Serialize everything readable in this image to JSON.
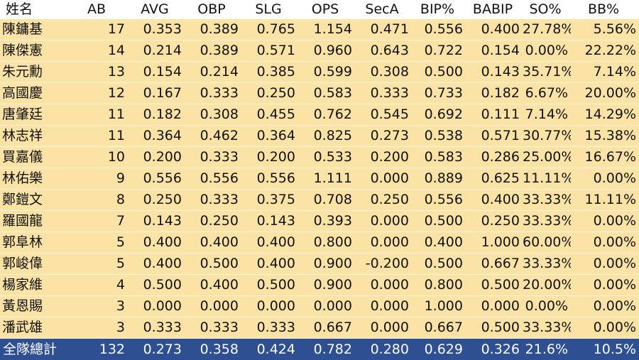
{
  "columns": [
    "姓名",
    "AB",
    "AVG",
    "OBP",
    "SLG",
    "OPS",
    "SecA",
    "BIP%",
    "BABIP",
    "SO%",
    "BB%"
  ],
  "rows": [
    [
      "陳鏞基",
      "17",
      "0.353",
      "0.389",
      "0.765",
      "1.154",
      "0.471",
      "0.556",
      "0.400",
      "27.78%",
      "5.56%"
    ],
    [
      "陳傑憲",
      "14",
      "0.214",
      "0.389",
      "0.571",
      "0.960",
      "0.643",
      "0.722",
      "0.154",
      "0.00%",
      "22.22%"
    ],
    [
      "朱元勳",
      "13",
      "0.154",
      "0.214",
      "0.385",
      "0.599",
      "0.308",
      "0.500",
      "0.143",
      "35.71%",
      "7.14%"
    ],
    [
      "高國慶",
      "12",
      "0.167",
      "0.333",
      "0.250",
      "0.583",
      "0.333",
      "0.733",
      "0.182",
      "6.67%",
      "20.00%"
    ],
    [
      "唐肇廷",
      "11",
      "0.182",
      "0.308",
      "0.455",
      "0.762",
      "0.545",
      "0.692",
      "0.111",
      "7.14%",
      "14.29%"
    ],
    [
      "林志祥",
      "11",
      "0.364",
      "0.462",
      "0.364",
      "0.825",
      "0.273",
      "0.538",
      "0.571",
      "30.77%",
      "15.38%"
    ],
    [
      "買嘉儀",
      "10",
      "0.200",
      "0.333",
      "0.200",
      "0.533",
      "0.200",
      "0.583",
      "0.286",
      "25.00%",
      "16.67%"
    ],
    [
      "林佑樂",
      "9",
      "0.556",
      "0.556",
      "0.556",
      "1.111",
      "0.000",
      "0.889",
      "0.625",
      "11.11%",
      "0.00%"
    ],
    [
      "鄭鎧文",
      "8",
      "0.250",
      "0.333",
      "0.375",
      "0.708",
      "0.250",
      "0.556",
      "0.400",
      "33.33%",
      "11.11%"
    ],
    [
      "羅國龍",
      "7",
      "0.143",
      "0.250",
      "0.143",
      "0.393",
      "0.000",
      "0.500",
      "0.250",
      "33.33%",
      "0.00%"
    ],
    [
      "郭阜林",
      "5",
      "0.400",
      "0.400",
      "0.400",
      "0.800",
      "0.000",
      "0.400",
      "1.000",
      "60.00%",
      "0.00%"
    ],
    [
      "郭峻偉",
      "5",
      "0.400",
      "0.500",
      "0.400",
      "0.900",
      "-0.200",
      "0.500",
      "0.667",
      "33.33%",
      "0.00%"
    ],
    [
      "楊家維",
      "4",
      "0.500",
      "0.400",
      "0.500",
      "0.900",
      "0.000",
      "0.800",
      "0.500",
      "20.00%",
      "0.00%"
    ],
    [
      "黃恩賜",
      "3",
      "0.000",
      "0.000",
      "0.000",
      "0.000",
      "0.000",
      "1.000",
      "0.000",
      "0.00%",
      "0.00%"
    ],
    [
      "潘武雄",
      "3",
      "0.333",
      "0.333",
      "0.333",
      "0.667",
      "0.000",
      "0.667",
      "0.500",
      "33.33%",
      "0.00%"
    ]
  ],
  "total": [
    "全隊總計",
    "132",
    "0.273",
    "0.358",
    "0.424",
    "0.782",
    "0.280",
    "0.629",
    "0.326",
    "21.6%",
    "10.5%"
  ],
  "colors": {
    "row_bg": "#fbe3a6",
    "total_bg": "#2f4f93",
    "total_text": "#ffffff"
  }
}
